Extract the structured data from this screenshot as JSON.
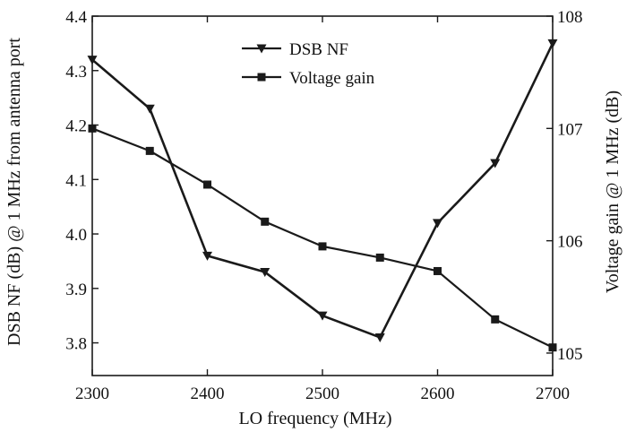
{
  "chart_data": {
    "type": "line",
    "x": [
      2300,
      2350,
      2400,
      2450,
      2500,
      2550,
      2600,
      2650,
      2700
    ],
    "xlabel": "LO frequency (MHz)",
    "xlim": [
      2300,
      2700
    ],
    "xticks": [
      2300,
      2400,
      2500,
      2600,
      2700
    ],
    "ylabel_left": "DSB NF (dB) @ 1 MHz from antenna port",
    "ylim_left": [
      3.74,
      4.4
    ],
    "yticks_left": [
      "3.8",
      "3.9",
      "4.0",
      "4.1",
      "4.2",
      "4.3",
      "4.4"
    ],
    "ylabel_right": "Voltage gain @ 1 MHz (dB)",
    "ylim_right": [
      104.8,
      108
    ],
    "yticks_right": [
      "105",
      "106",
      "107",
      "108"
    ],
    "grid": false,
    "legend_position": "top-center",
    "series": [
      {
        "name": "DSB NF",
        "axis": "left",
        "marker": "triangle-down",
        "values": [
          4.32,
          4.23,
          3.96,
          3.93,
          3.85,
          3.81,
          4.02,
          4.13,
          4.35
        ]
      },
      {
        "name": "Voltage gain",
        "axis": "right",
        "marker": "square",
        "values": [
          107.0,
          106.8,
          106.5,
          106.17,
          105.95,
          105.85,
          105.73,
          105.3,
          105.05
        ]
      }
    ],
    "color": "#1a1a1a"
  }
}
